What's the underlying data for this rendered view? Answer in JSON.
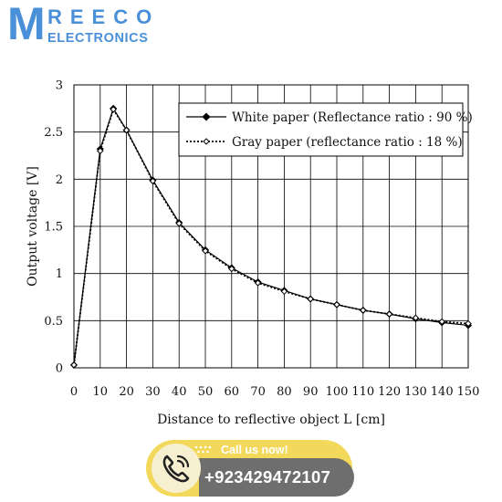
{
  "logo": {
    "big_letter": "M",
    "top_text": "REECO",
    "bottom_text": "ELECTRONICS",
    "color": "#4a90d9"
  },
  "call": {
    "label": "Call us now!",
    "number": "+923429472107",
    "icon": "phone-icon",
    "accent": "#f2d95c",
    "dark": "#6e6e6e"
  },
  "chart_data": {
    "type": "line",
    "title": "",
    "xlabel": "Distance to reflective object L [cm]",
    "ylabel": "Output voltage [V]",
    "xlim": [
      0,
      150
    ],
    "ylim": [
      0,
      3
    ],
    "x_ticks": [
      0,
      10,
      20,
      30,
      40,
      50,
      60,
      70,
      80,
      90,
      100,
      110,
      120,
      130,
      140,
      150
    ],
    "y_ticks": [
      0,
      0.5,
      1,
      1.5,
      2,
      2.5,
      3
    ],
    "x_tick_labels": [
      "0",
      "10",
      "20",
      "30",
      "40",
      "50",
      "60",
      "70",
      "80",
      "90",
      "100",
      "110",
      "120",
      "130",
      "140",
      "150"
    ],
    "y_tick_labels": [
      "0",
      "0.5",
      "1",
      "1.5",
      "2",
      "2.5",
      "3"
    ],
    "grid": true,
    "legend_position": "top-right",
    "series": [
      {
        "name": "White paper (Reflectance ratio : 90 %)",
        "line_style": "solid",
        "marker": "filled-diamond",
        "color": "#000000",
        "x": [
          0,
          10,
          15,
          20,
          30,
          40,
          50,
          60,
          70,
          80,
          90,
          100,
          110,
          120,
          130,
          140,
          150
        ],
        "y": [
          0.03,
          2.32,
          2.75,
          2.52,
          1.99,
          1.54,
          1.25,
          1.06,
          0.91,
          0.82,
          0.73,
          0.67,
          0.61,
          0.57,
          0.52,
          0.48,
          0.45
        ]
      },
      {
        "name": "Gray paper (reflectance ratio : 18 %)",
        "line_style": "dotted",
        "marker": "hollow-diamond",
        "color": "#000000",
        "x": [
          0,
          10,
          15,
          20,
          30,
          40,
          50,
          60,
          70,
          80,
          90,
          100,
          110,
          120,
          130,
          140,
          150
        ],
        "y": [
          0.03,
          2.3,
          2.74,
          2.52,
          1.98,
          1.53,
          1.24,
          1.05,
          0.9,
          0.81,
          0.73,
          0.67,
          0.61,
          0.57,
          0.53,
          0.49,
          0.47
        ]
      }
    ]
  }
}
